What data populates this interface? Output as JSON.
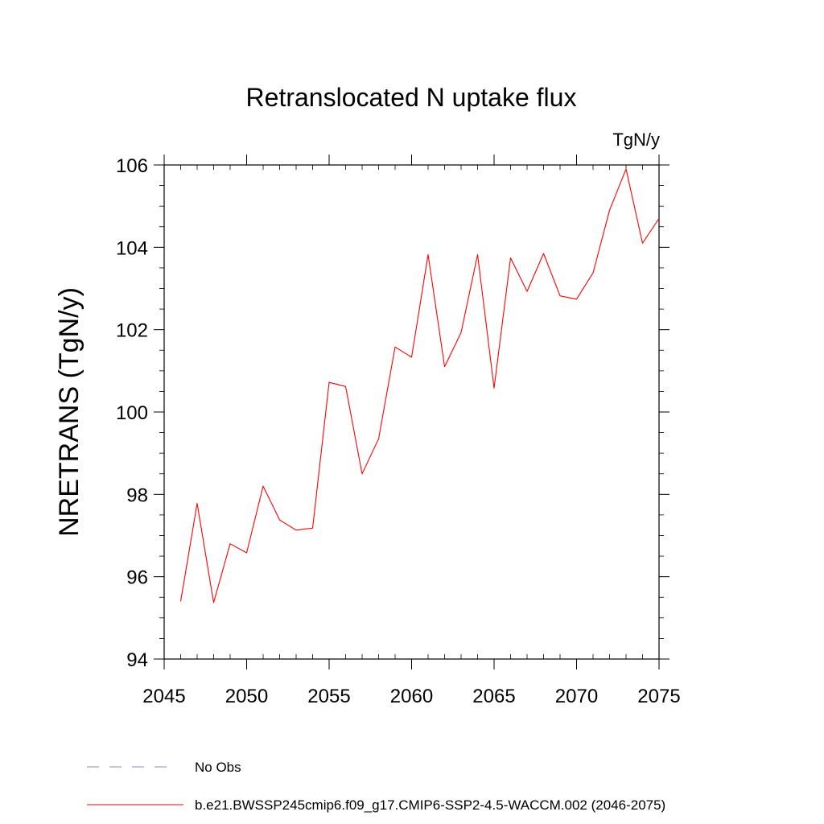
{
  "chart_data": {
    "type": "line",
    "title": "Retranslocated N uptake flux",
    "units": "TgN/y",
    "xlabel": "",
    "ylabel": "NRETRANS  (TgN/y)",
    "xlim": [
      2045,
      2075
    ],
    "ylim": [
      94,
      106
    ],
    "xticks": [
      2045,
      2050,
      2055,
      2060,
      2065,
      2070,
      2075
    ],
    "yticks": [
      94,
      96,
      98,
      100,
      102,
      104,
      106
    ],
    "grid": false,
    "series": [
      {
        "name": "b.e21.BWSSP245cmip6.f09_g17.CMIP6-SSP2-4.5-WACCM.002 (2046-2075)",
        "color": "#ff0000",
        "style": "solid",
        "x": [
          2046,
          2047,
          2048,
          2049,
          2050,
          2051,
          2052,
          2053,
          2054,
          2055,
          2056,
          2057,
          2058,
          2059,
          2060,
          2061,
          2062,
          2063,
          2064,
          2065,
          2066,
          2067,
          2068,
          2069,
          2070,
          2071,
          2072,
          2073,
          2074,
          2075
        ],
        "y": [
          95.4,
          97.78,
          95.37,
          96.8,
          96.58,
          98.2,
          97.38,
          97.13,
          97.18,
          100.72,
          100.62,
          98.5,
          99.35,
          101.58,
          101.33,
          103.82,
          101.1,
          101.93,
          103.82,
          100.58,
          103.74,
          102.93,
          103.85,
          102.82,
          102.74,
          103.38,
          104.9,
          105.9,
          104.1,
          104.7
        ]
      }
    ],
    "legend": [
      {
        "label": "No Obs",
        "color": "#8a84c4",
        "style": "dashed"
      },
      {
        "label": "b.e21.BWSSP245cmip6.f09_g17.CMIP6-SSP2-4.5-WACCM.002 (2046-2075)",
        "color": "#ff0000",
        "style": "solid"
      }
    ],
    "legend_position": "bottom"
  }
}
